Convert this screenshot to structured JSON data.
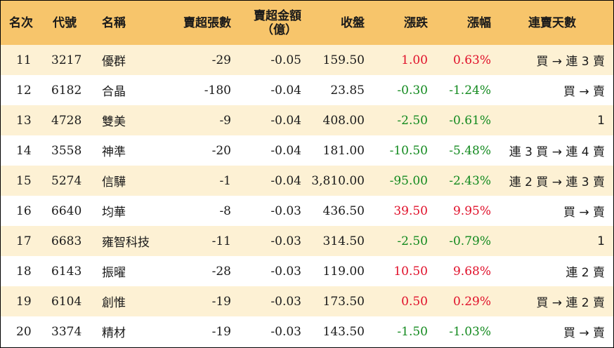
{
  "headers": {
    "rank": "名次",
    "code": "代號",
    "name": "名稱",
    "sell_lots": "賣超張數",
    "sell_amount_line1": "賣超金額",
    "sell_amount_line2": "（億）",
    "close": "收盤",
    "change": "漲跌",
    "pct": "漲幅",
    "streak": "連賣天數"
  },
  "colors": {
    "header_bg": "#f7c56b",
    "odd_row_bg": "#fdf1d4",
    "up": "#e0102a",
    "down": "#138a1f"
  },
  "rows": [
    {
      "rank": "11",
      "code": "3217",
      "name": "優群",
      "sell_lots": "-29",
      "sell_amount": "-0.05",
      "close": "159.50",
      "change": "1.00",
      "pct": "0.63%",
      "streak": "買 → 連 3 賣"
    },
    {
      "rank": "12",
      "code": "6182",
      "name": "合晶",
      "sell_lots": "-180",
      "sell_amount": "-0.04",
      "close": "23.85",
      "change": "-0.30",
      "pct": "-1.24%",
      "streak": "買 → 賣"
    },
    {
      "rank": "13",
      "code": "4728",
      "name": "雙美",
      "sell_lots": "-9",
      "sell_amount": "-0.04",
      "close": "408.00",
      "change": "-2.50",
      "pct": "-0.61%",
      "streak": "1"
    },
    {
      "rank": "14",
      "code": "3558",
      "name": "神準",
      "sell_lots": "-20",
      "sell_amount": "-0.04",
      "close": "181.00",
      "change": "-10.50",
      "pct": "-5.48%",
      "streak": "連 3 買 → 連 4 賣"
    },
    {
      "rank": "15",
      "code": "5274",
      "name": "信驊",
      "sell_lots": "-1",
      "sell_amount": "-0.04",
      "close": "3,810.00",
      "change": "-95.00",
      "pct": "-2.43%",
      "streak": "連 2 買 → 連 3 賣"
    },
    {
      "rank": "16",
      "code": "6640",
      "name": "均華",
      "sell_lots": "-8",
      "sell_amount": "-0.03",
      "close": "436.50",
      "change": "39.50",
      "pct": "9.95%",
      "streak": "買 → 賣"
    },
    {
      "rank": "17",
      "code": "6683",
      "name": "雍智科技",
      "sell_lots": "-11",
      "sell_amount": "-0.03",
      "close": "314.50",
      "change": "-2.50",
      "pct": "-0.79%",
      "streak": "1"
    },
    {
      "rank": "18",
      "code": "6143",
      "name": "振曜",
      "sell_lots": "-28",
      "sell_amount": "-0.03",
      "close": "119.00",
      "change": "10.50",
      "pct": "9.68%",
      "streak": "連 2 賣"
    },
    {
      "rank": "19",
      "code": "6104",
      "name": "創惟",
      "sell_lots": "-19",
      "sell_amount": "-0.03",
      "close": "173.50",
      "change": "0.50",
      "pct": "0.29%",
      "streak": "買 → 連 2 賣"
    },
    {
      "rank": "20",
      "code": "3374",
      "name": "精材",
      "sell_lots": "-19",
      "sell_amount": "-0.03",
      "close": "143.50",
      "change": "-1.50",
      "pct": "-1.03%",
      "streak": "買 → 賣"
    }
  ]
}
